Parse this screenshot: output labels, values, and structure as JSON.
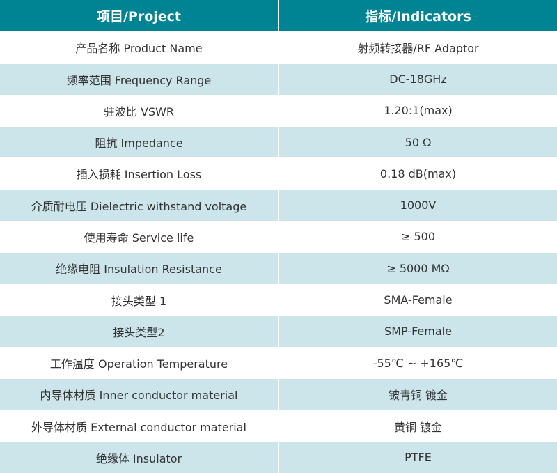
{
  "header": {
    "project": "项目/Project",
    "indicators": "指标/Indicators"
  },
  "colors": {
    "header_bg": "#008494",
    "alt_row_bg": "#cce5ea",
    "row_bg": "#ffffff"
  },
  "rows": [
    {
      "project": "产品名称 Product Name",
      "indicator": "射频转接器/RF Adaptor"
    },
    {
      "project": "频率范围 Frequency Range",
      "indicator": "DC-18GHz"
    },
    {
      "project": "驻波比 VSWR",
      "indicator": "1.20:1(max)"
    },
    {
      "project": "阻抗 Impedance",
      "indicator": "50 Ω"
    },
    {
      "project": "插入损耗 Insertion Loss",
      "indicator": "0.18 dB(max)"
    },
    {
      "project": "介质耐电压 Dielectric withstand voltage",
      "indicator": "1000V"
    },
    {
      "project": "使用寿命 Service life",
      "indicator": "≥ 500"
    },
    {
      "project": "绝缘电阻 Insulation Resistance",
      "indicator": "≥ 5000 MΩ"
    },
    {
      "project": "接头类型 1",
      "indicator": "SMA-Female"
    },
    {
      "project": "接头类型2",
      "indicator": "SMP-Female"
    },
    {
      "project": "工作温度 Operation Temperature",
      "indicator": "-55℃ ~ +165℃"
    },
    {
      "project": "内导体材质 Inner conductor material",
      "indicator": "铍青铜 镀金"
    },
    {
      "project": "外导体材质 External conductor material",
      "indicator": "黄铜 镀金"
    },
    {
      "project": "绝缘体 Insulator",
      "indicator": "PTFE"
    }
  ]
}
